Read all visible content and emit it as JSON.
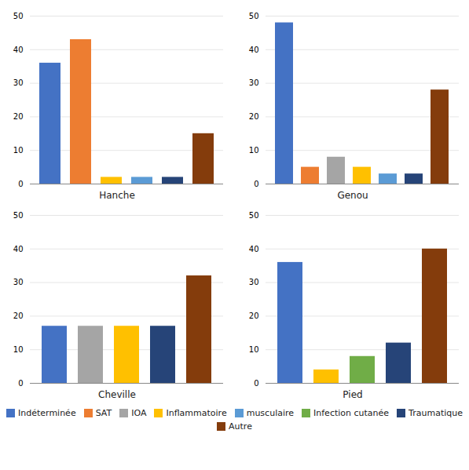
{
  "chart_data": [
    {
      "type": "bar",
      "xlabel": "Hanche",
      "categories": [
        "Indéterminée",
        "SAT",
        "IOA",
        "Inflammatoire",
        "musculaire",
        "Infection cutanée",
        "Traumatique",
        "Autre"
      ],
      "values": [
        36,
        43,
        0,
        2,
        2,
        0,
        2,
        15
      ],
      "colors": [
        "#4472C4",
        "#ED7D31",
        "#A5A5A5",
        "#FFC000",
        "#5B9BD5",
        "#70AD47",
        "#264478",
        "#843C0C"
      ],
      "ylim": [
        0,
        50
      ],
      "yticks": [
        0,
        10,
        20,
        30,
        40,
        50
      ],
      "grid": true,
      "tick_labels": "y",
      "legend": "bottom"
    },
    {
      "type": "bar",
      "xlabel": "Genou",
      "categories": [
        "Indéterminée",
        "SAT",
        "IOA",
        "Inflammatoire",
        "musculaire",
        "Infection cutanée",
        "Traumatique",
        "Autre"
      ],
      "values": [
        48,
        5,
        8,
        5,
        3,
        0,
        3,
        28
      ],
      "colors": [
        "#4472C4",
        "#ED7D31",
        "#A5A5A5",
        "#FFC000",
        "#5B9BD5",
        "#70AD47",
        "#264478",
        "#843C0C"
      ],
      "ylim": [
        0,
        50
      ],
      "yticks": [
        0,
        10,
        20,
        30,
        40,
        50
      ],
      "grid": true,
      "tick_labels": "y",
      "legend": "bottom"
    },
    {
      "type": "bar",
      "xlabel": "Cheville",
      "categories": [
        "Indéterminée",
        "SAT",
        "IOA",
        "Inflammatoire",
        "musculaire",
        "Infection cutanée",
        "Traumatique",
        "Autre"
      ],
      "values": [
        17,
        0,
        17,
        17,
        0,
        0,
        17,
        32
      ],
      "colors": [
        "#4472C4",
        "#ED7D31",
        "#A5A5A5",
        "#FFC000",
        "#5B9BD5",
        "#70AD47",
        "#264478",
        "#843C0C"
      ],
      "ylim": [
        0,
        50
      ],
      "yticks": [
        0,
        10,
        20,
        30,
        40,
        50
      ],
      "grid": true,
      "tick_labels": "y",
      "legend": "bottom"
    },
    {
      "type": "bar",
      "xlabel": "Pied",
      "categories": [
        "Indéterminée",
        "SAT",
        "IOA",
        "Inflammatoire",
        "musculaire",
        "Infection cutanée",
        "Traumatique",
        "Autre"
      ],
      "values": [
        36,
        0,
        0,
        4,
        0,
        8,
        12,
        40
      ],
      "colors": [
        "#4472C4",
        "#ED7D31",
        "#A5A5A5",
        "#FFC000",
        "#5B9BD5",
        "#70AD47",
        "#264478",
        "#843C0C"
      ],
      "ylim": [
        0,
        50
      ],
      "yticks": [
        0,
        10,
        20,
        30,
        40,
        50
      ],
      "grid": true,
      "tick_labels": "y",
      "legend": "bottom"
    }
  ]
}
